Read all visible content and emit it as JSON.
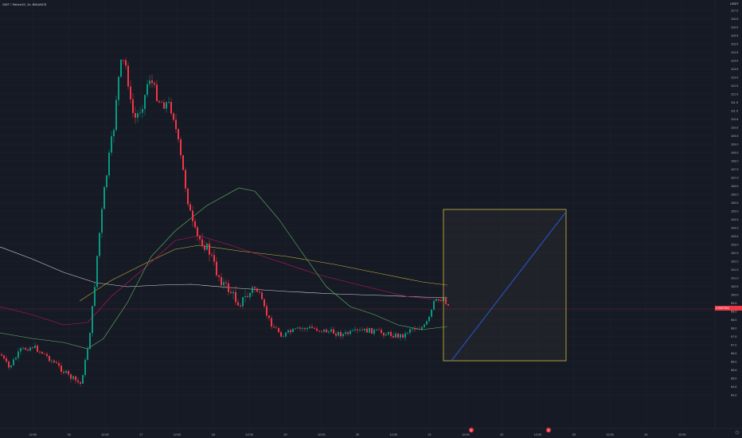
{
  "header": {
    "symbol_title": "GMT / TetherUS, 1h, BINANCE",
    "quote_currency": "USDT"
  },
  "price_tag": {
    "price": "0.9987564",
    "countdown": "19:30",
    "color": "#f23645"
  },
  "colors": {
    "background": "#161a25",
    "up_candle": "#089981",
    "down_candle": "#f23645",
    "ma_white": "#d7d7d7",
    "ma_yellow": "#c9b437",
    "ma_pink": "#c2185b",
    "ma_green": "#66bb6a",
    "projection_box_border": "#d4b93a",
    "projection_line": "#2962ff"
  },
  "y_axis_labels": [
    "117.0",
    "116.5",
    "116.0",
    "115.5",
    "115.0",
    "114.5",
    "114.0",
    "113.5",
    "113.0",
    "112.5",
    "112.0",
    "111.5",
    "111.0",
    "110.5",
    "110.0",
    "109.5",
    "109.0",
    "108.5",
    "108.0",
    "107.5",
    "107.0",
    "106.5",
    "106.0",
    "105.5",
    "105.0",
    "104.5",
    "104.0",
    "103.5",
    "103.0",
    "102.5",
    "102.0",
    "101.5",
    "101.0",
    "100.5",
    "100.0",
    "99.5",
    "99.0",
    "98.5",
    "98.0",
    "97.5",
    "97.0",
    "96.5",
    "96.0",
    "95.5",
    "95.0",
    "94.5",
    "94.0"
  ],
  "x_axis_labels": [
    "2",
    "12:00",
    "16",
    "12:00",
    "17",
    "12:00",
    "18",
    "12:00",
    "19",
    "12:00",
    "20",
    "12:00",
    "21",
    "12:00",
    "22",
    "12:00",
    "23",
    "12:00",
    "24",
    "12:00"
  ],
  "time_markers": [
    {
      "label": "E",
      "icon": "event-marker-icon"
    },
    {
      "label": "E",
      "icon": "event-marker-icon"
    }
  ],
  "icons": {
    "settings": "gear-icon",
    "resize": "resize-handle-icon"
  }
}
